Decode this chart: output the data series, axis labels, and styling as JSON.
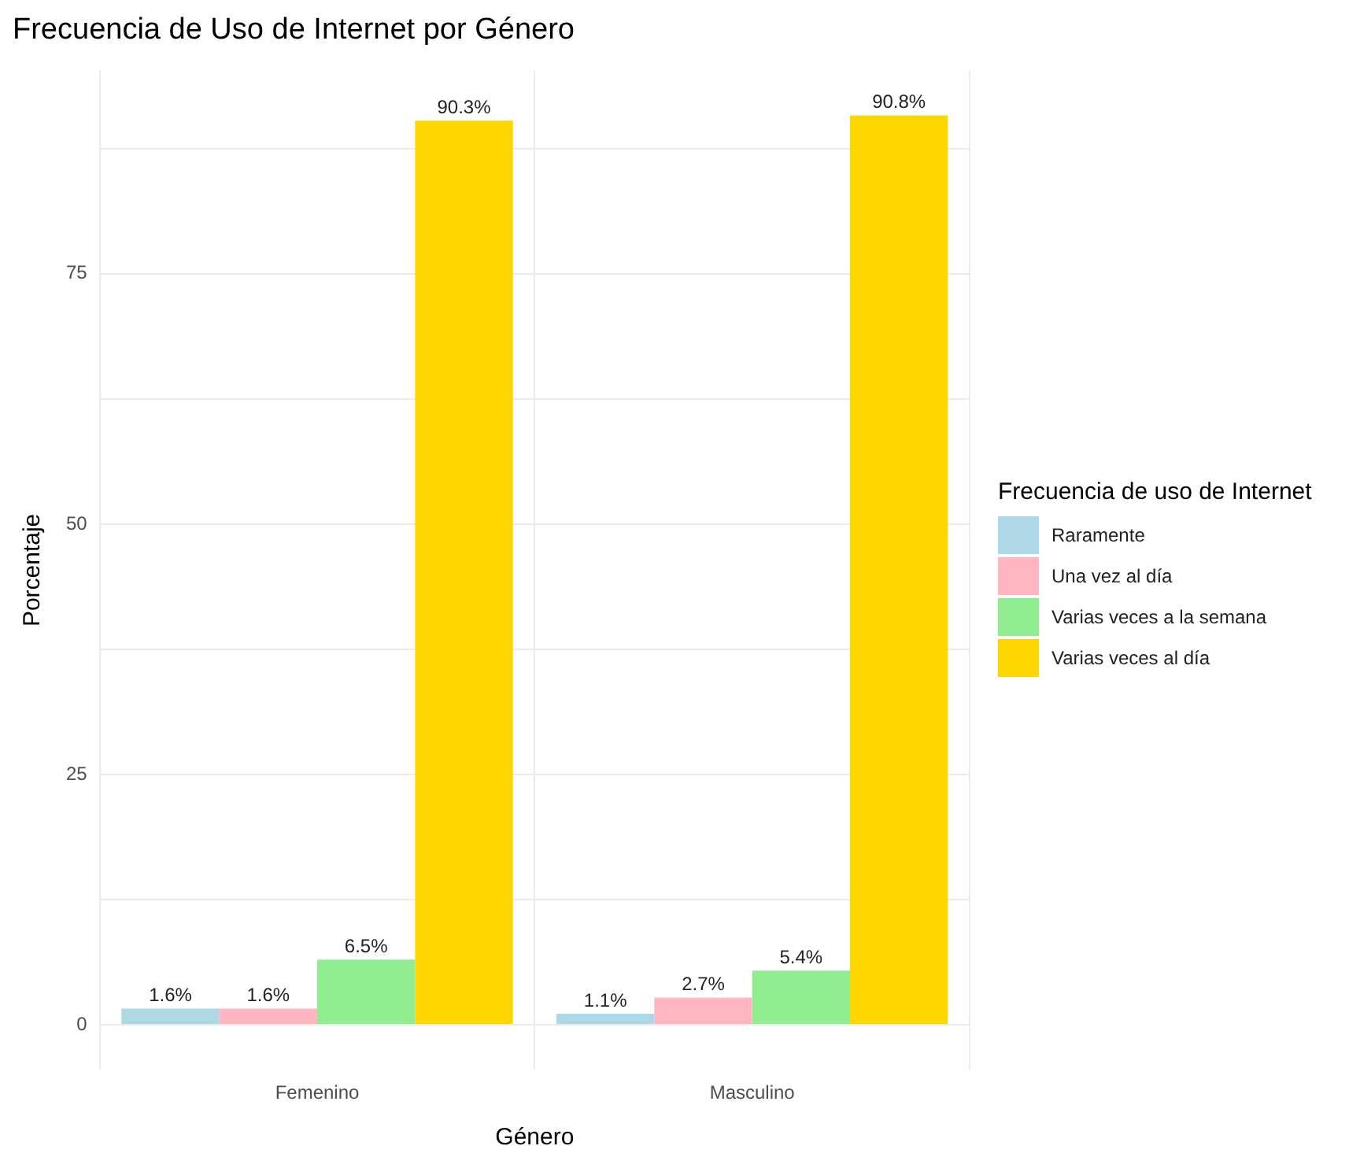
{
  "chart_data": {
    "type": "bar",
    "title": "Frecuencia de Uso de Internet por Género",
    "xlabel": "Género",
    "ylabel": "Porcentaje",
    "legend_title": "Frecuencia de uso de Internet",
    "categories": [
      "Femenino",
      "Masculino"
    ],
    "series": [
      {
        "name": "Raramente",
        "color": "#add8e6",
        "values": [
          1.6,
          1.1
        ],
        "value_labels": [
          "1.6%",
          "1.1%"
        ]
      },
      {
        "name": "Una vez al día",
        "color": "#ffb6c1",
        "values": [
          1.6,
          2.7
        ],
        "value_labels": [
          "1.6%",
          "2.7%"
        ]
      },
      {
        "name": "Varias veces a la semana",
        "color": "#90ee90",
        "values": [
          6.5,
          5.4
        ],
        "value_labels": [
          "6.5%",
          "5.4%"
        ]
      },
      {
        "name": "Varias veces al día",
        "color": "#ffd700",
        "values": [
          90.3,
          90.8
        ],
        "value_labels": [
          "90.3%",
          "90.8%"
        ]
      }
    ],
    "ylim": [
      -4.5,
      95.3
    ],
    "yticks": [
      0,
      {
        "value": 12.5,
        "label": null
      },
      25,
      {
        "value": 37.5,
        "label": null
      },
      50,
      {
        "value": 62.5,
        "label": null
      },
      75,
      {
        "value": 87.5,
        "label": null
      }
    ],
    "grid": true,
    "legend": "right"
  }
}
